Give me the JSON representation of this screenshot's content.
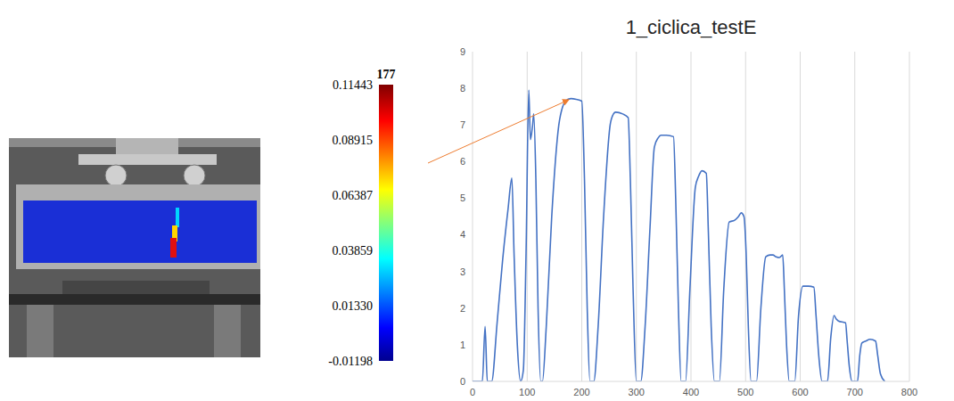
{
  "chart_data": {
    "type": "line",
    "title": "1_ciclica_testE",
    "color": "#4472c4",
    "grid": true,
    "x": [
      0,
      18,
      23,
      27,
      35,
      45,
      55,
      65,
      72,
      76,
      82,
      88,
      93,
      98,
      103,
      106,
      110,
      112,
      116,
      120,
      125,
      128,
      135,
      145,
      158,
      165,
      170,
      180,
      190,
      200,
      205,
      210,
      215,
      222,
      230,
      240,
      252,
      258,
      262,
      275,
      285,
      289,
      294,
      300,
      308,
      316,
      325,
      333,
      340,
      345,
      355,
      368,
      372,
      377,
      382,
      390,
      398,
      408,
      414,
      420,
      428,
      432,
      437,
      443,
      452,
      460,
      470,
      480,
      487,
      492,
      497,
      501,
      505,
      510,
      520,
      528,
      537,
      545,
      550,
      556,
      562,
      568,
      571,
      575,
      580,
      590,
      597,
      605,
      615,
      625,
      629,
      634,
      640,
      650,
      656,
      662,
      666,
      670,
      683,
      686,
      690,
      695,
      705,
      709,
      713,
      720,
      728,
      738,
      742,
      747,
      755
    ],
    "values": [
      0,
      0,
      1.5,
      0,
      0,
      1.6,
      3.3,
      4.7,
      5.55,
      3.5,
      1,
      0,
      0.3,
      3.5,
      7.95,
      6.6,
      7.0,
      7.3,
      5.5,
      2,
      0,
      0,
      1.5,
      4.5,
      7.0,
      7.5,
      7.65,
      7.72,
      7.7,
      7.65,
      5.5,
      2,
      0,
      0,
      1.5,
      4.5,
      7.0,
      7.3,
      7.35,
      7.3,
      7.2,
      5.5,
      2.5,
      0,
      0,
      1.5,
      4.2,
      6.4,
      6.65,
      6.72,
      6.72,
      6.68,
      5,
      2,
      0,
      0,
      2.5,
      5.3,
      5.6,
      5.75,
      5.68,
      4,
      1.5,
      0,
      0,
      2.5,
      4.35,
      4.4,
      4.5,
      4.6,
      4.5,
      3.5,
      1.5,
      0,
      0,
      2,
      3.4,
      3.45,
      3.45,
      3.4,
      3.38,
      3.45,
      2.5,
      1,
      0,
      0,
      1.8,
      2.6,
      2.6,
      2.57,
      1.8,
      0.7,
      0,
      0,
      1.2,
      1.8,
      1.7,
      1.65,
      1.6,
      1.1,
      0.4,
      0,
      0,
      0.7,
      1.05,
      1.1,
      1.15,
      1.1,
      0.7,
      0.2,
      0
    ],
    "xlim": [
      0,
      800
    ],
    "xticks": [
      0,
      100,
      200,
      300,
      400,
      500,
      600,
      700,
      800
    ],
    "ylim": [
      0,
      9
    ],
    "yticks": [
      0,
      1,
      2,
      3,
      4,
      5,
      6,
      7,
      8,
      9
    ]
  },
  "colorbar": {
    "title": "177",
    "range": [
      -0.01198,
      0.11443
    ],
    "ticks": [
      0.11443,
      0.08915,
      0.06387,
      0.03859,
      {
        "value": 0.0133,
        "label": "0.01330"
      },
      -0.01198
    ]
  }
}
